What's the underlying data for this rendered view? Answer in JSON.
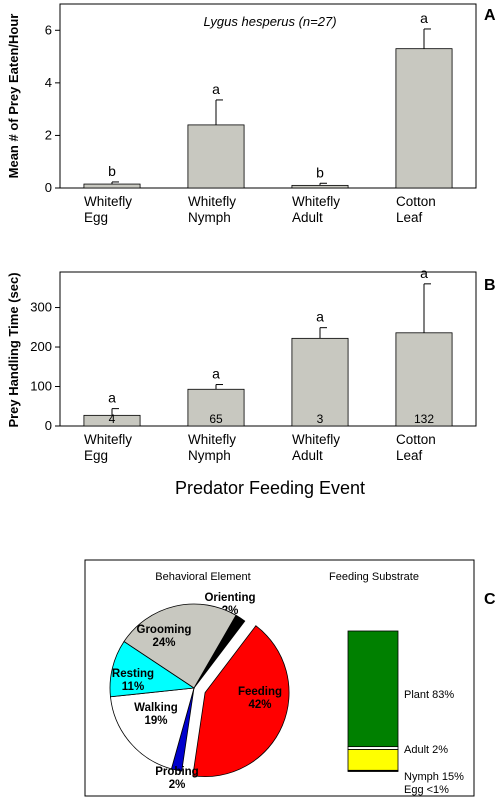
{
  "chart_data": [
    {
      "panel": "A",
      "type": "bar",
      "annotation": "Lygus hesperus (n=27)",
      "ylabel": "Mean # of Prey Eaten/Hour",
      "xlabel": "",
      "categories": [
        [
          "Whitefly",
          "Egg"
        ],
        [
          "Whitefly",
          "Nymph"
        ],
        [
          "Whitefly",
          "Adult"
        ],
        [
          "Cotton",
          "Leaf"
        ]
      ],
      "values": [
        0.15,
        2.4,
        0.1,
        5.3
      ],
      "errors": [
        0.08,
        0.95,
        0.08,
        0.75
      ],
      "significance": [
        "b",
        "a",
        "b",
        "a"
      ],
      "ylim": [
        0,
        7
      ],
      "yticks": [
        0,
        2,
        4,
        6
      ],
      "bar_color": "#c8c8c0"
    },
    {
      "panel": "B",
      "type": "bar",
      "ylabel": "Prey Handling Time (sec)",
      "xlabel": "Predator Feeding Event",
      "categories": [
        [
          "Whitefly",
          "Egg"
        ],
        [
          "Whitefly",
          "Nymph"
        ],
        [
          "Whitefly",
          "Adult"
        ],
        [
          "Cotton",
          "Leaf"
        ]
      ],
      "values": [
        27,
        93,
        222,
        236
      ],
      "errors": [
        17,
        12,
        27,
        124
      ],
      "significance": [
        "a",
        "a",
        "a",
        "a"
      ],
      "n_labels": [
        "4",
        "65",
        "3",
        "132"
      ],
      "ylim": [
        0,
        390
      ],
      "yticks": [
        0,
        100,
        200,
        300
      ],
      "bar_color": "#c8c8c0"
    },
    {
      "panel": "C",
      "type": "pie",
      "title": "Behavioral Element",
      "slices": [
        {
          "label": "Orienting",
          "pct_label": "2%",
          "value": 2,
          "color": "#000000"
        },
        {
          "label": "Feeding",
          "pct_label": "42%",
          "value": 42,
          "color": "#ff0000",
          "exploded": true
        },
        {
          "label": "Probing",
          "pct_label": "2%",
          "value": 2,
          "color": "#0000cc"
        },
        {
          "label": "Walking",
          "pct_label": "19%",
          "value": 19,
          "color": "#ffffff"
        },
        {
          "label": "Resting",
          "pct_label": "11%",
          "value": 11,
          "color": "#00ffff"
        },
        {
          "label": "Grooming",
          "pct_label": "24%",
          "value": 24,
          "color": "#c8c8c0"
        }
      ]
    },
    {
      "panel": "C",
      "type": "bar",
      "subtype": "stacked",
      "title": "Feeding Substrate",
      "segments": [
        {
          "label": "Egg <1%",
          "value": 0.5,
          "color": "#000000"
        },
        {
          "label": "Nymph 15%",
          "value": 15,
          "color": "#ffff00"
        },
        {
          "label": "Adult 2%",
          "value": 2,
          "color": "#ffffff"
        },
        {
          "label": "Plant 83%",
          "value": 83,
          "color": "#008000"
        }
      ]
    }
  ],
  "panels": {
    "a": "A",
    "b": "B",
    "c": "C"
  }
}
